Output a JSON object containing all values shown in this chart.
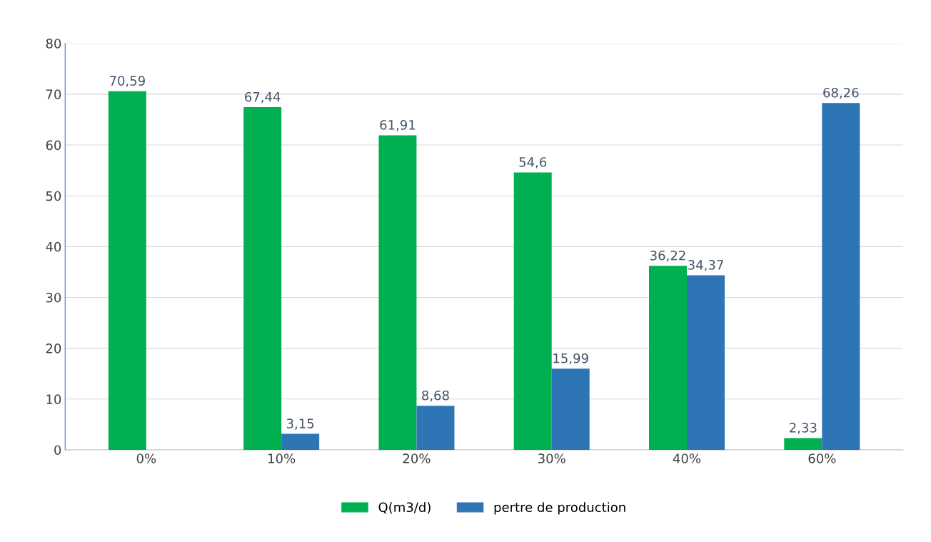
{
  "chart_data": {
    "type": "bar",
    "categories": [
      "0%",
      "10%",
      "20%",
      "30%",
      "40%",
      "60%"
    ],
    "series": [
      {
        "name": "Q(m3/d)",
        "color": "#00b050",
        "values": [
          70.59,
          67.44,
          61.91,
          54.6,
          36.22,
          2.33
        ],
        "value_labels": [
          "70,59",
          "67,44",
          "61,91",
          "54,6",
          "36,22",
          "2,33"
        ]
      },
      {
        "name": "pertre de production",
        "color": "#2e75b6",
        "values": [
          null,
          3.15,
          8.68,
          15.99,
          34.37,
          68.26
        ],
        "value_labels": [
          null,
          "3,15",
          "8,68",
          "15,99",
          "34,37",
          "68,26"
        ]
      }
    ],
    "ylim": [
      0,
      80
    ],
    "yticks": [
      0,
      10,
      20,
      30,
      40,
      50,
      60,
      70,
      80
    ],
    "grid": "y",
    "legend": "bottom"
  }
}
